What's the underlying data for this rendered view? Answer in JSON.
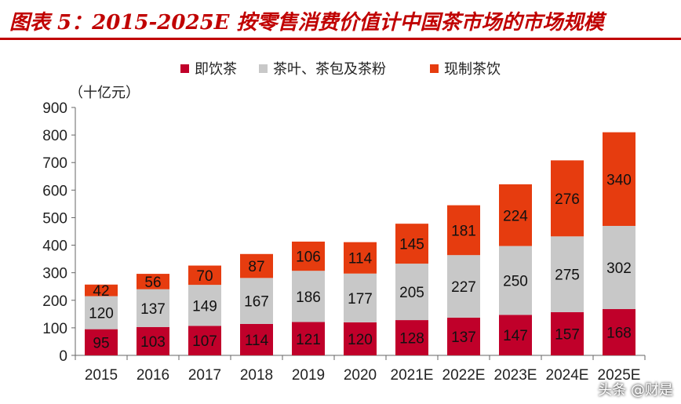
{
  "header": {
    "title": "图表 5：2015-2025E 按零售消费价值计中国茶市场的市场规模"
  },
  "watermark": "头条 @财是",
  "colors": {
    "title": "#c00000",
    "series": [
      "#c0002a",
      "#c8c8c8",
      "#e63c0f"
    ]
  },
  "chart_data": {
    "type": "bar",
    "stacked": true,
    "unit_label": "（十亿元）",
    "categories": [
      "2015",
      "2016",
      "2017",
      "2018",
      "2019",
      "2020",
      "2021E",
      "2022E",
      "2023E",
      "2024E",
      "2025E"
    ],
    "series": [
      {
        "name": "即饮茶",
        "values": [
          95,
          103,
          107,
          114,
          121,
          120,
          128,
          137,
          147,
          157,
          168
        ]
      },
      {
        "name": "茶叶、茶包及茶粉",
        "values": [
          120,
          137,
          149,
          167,
          186,
          177,
          205,
          227,
          250,
          275,
          302
        ]
      },
      {
        "name": "现制茶饮",
        "values": [
          42,
          56,
          70,
          87,
          106,
          114,
          145,
          181,
          224,
          276,
          340
        ]
      }
    ],
    "ylim": [
      0,
      900
    ],
    "yticks": [
      0,
      100,
      200,
      300,
      400,
      500,
      600,
      700,
      800,
      900
    ],
    "legend_position": "top",
    "grid": false
  }
}
